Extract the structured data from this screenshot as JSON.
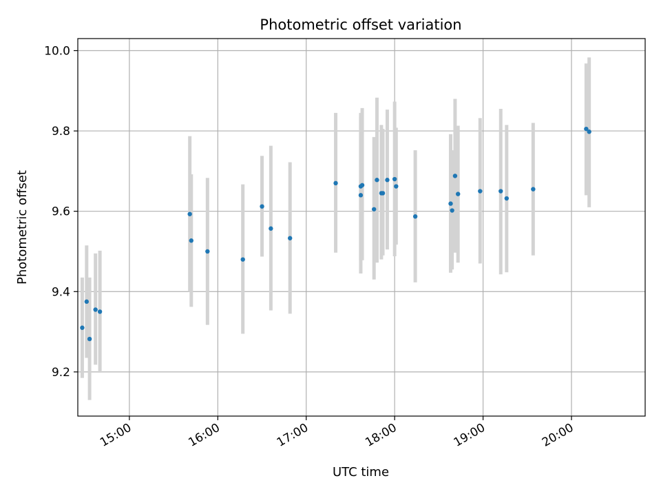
{
  "chart_data": {
    "type": "scatter",
    "title": "Photometric offset variation",
    "xlabel": "UTC time",
    "ylabel": "Photometric offset",
    "x_is_time": true,
    "xlim": [
      "14:25",
      "20:50"
    ],
    "ylim": [
      9.09,
      10.03
    ],
    "x_ticks": [
      "15:00",
      "16:00",
      "17:00",
      "18:00",
      "19:00",
      "20:00"
    ],
    "y_ticks": [
      "9.2",
      "9.4",
      "9.6",
      "9.8",
      "10.0"
    ],
    "grid": true,
    "point_color": "#1f77b4",
    "errorbar_color": "#d3d3d3",
    "series": [
      {
        "points": [
          {
            "time": "14:28",
            "y": 9.31,
            "err_low": 9.185,
            "err_high": 9.435
          },
          {
            "time": "14:31",
            "y": 9.375,
            "err_low": 9.235,
            "err_high": 9.515
          },
          {
            "time": "14:33",
            "y": 9.282,
            "err_low": 9.13,
            "err_high": 9.435
          },
          {
            "time": "14:37",
            "y": 9.355,
            "err_low": 9.218,
            "err_high": 9.495
          },
          {
            "time": "14:40",
            "y": 9.35,
            "err_low": 9.198,
            "err_high": 9.502
          },
          {
            "time": "15:41",
            "y": 9.593,
            "err_low": 9.4,
            "err_high": 9.787
          },
          {
            "time": "15:42",
            "y": 9.527,
            "err_low": 9.362,
            "err_high": 9.692
          },
          {
            "time": "15:53",
            "y": 9.5,
            "err_low": 9.317,
            "err_high": 9.683
          },
          {
            "time": "16:17",
            "y": 9.48,
            "err_low": 9.295,
            "err_high": 9.667
          },
          {
            "time": "16:30",
            "y": 9.612,
            "err_low": 9.487,
            "err_high": 9.738
          },
          {
            "time": "16:36",
            "y": 9.557,
            "err_low": 9.353,
            "err_high": 9.763
          },
          {
            "time": "16:49",
            "y": 9.533,
            "err_low": 9.345,
            "err_high": 9.722
          },
          {
            "time": "17:20",
            "y": 9.67,
            "err_low": 9.497,
            "err_high": 9.845
          },
          {
            "time": "17:37",
            "y": 9.662,
            "err_low": 9.478,
            "err_high": 9.845
          },
          {
            "time": "17:37",
            "y": 9.64,
            "err_low": 9.445,
            "err_high": 9.835
          },
          {
            "time": "17:38",
            "y": 9.665,
            "err_low": 9.478,
            "err_high": 9.857
          },
          {
            "time": "17:46",
            "y": 9.605,
            "err_low": 9.43,
            "err_high": 9.785
          },
          {
            "time": "17:48",
            "y": 9.678,
            "err_low": 9.472,
            "err_high": 9.883
          },
          {
            "time": "17:51",
            "y": 9.645,
            "err_low": 9.48,
            "err_high": 9.815
          },
          {
            "time": "17:52",
            "y": 9.645,
            "err_low": 9.49,
            "err_high": 9.805
          },
          {
            "time": "17:55",
            "y": 9.678,
            "err_low": 9.505,
            "err_high": 9.853
          },
          {
            "time": "18:00",
            "y": 9.68,
            "err_low": 9.488,
            "err_high": 9.873
          },
          {
            "time": "18:01",
            "y": 9.662,
            "err_low": 9.517,
            "err_high": 9.808
          },
          {
            "time": "18:14",
            "y": 9.587,
            "err_low": 9.423,
            "err_high": 9.752
          },
          {
            "time": "18:38",
            "y": 9.619,
            "err_low": 9.447,
            "err_high": 9.792
          },
          {
            "time": "18:39",
            "y": 9.602,
            "err_low": 9.455,
            "err_high": 9.752
          },
          {
            "time": "18:41",
            "y": 9.688,
            "err_low": 9.497,
            "err_high": 9.88
          },
          {
            "time": "18:43",
            "y": 9.643,
            "err_low": 9.472,
            "err_high": 9.813
          },
          {
            "time": "18:58",
            "y": 9.65,
            "err_low": 9.47,
            "err_high": 9.832
          },
          {
            "time": "19:12",
            "y": 9.65,
            "err_low": 9.443,
            "err_high": 9.855
          },
          {
            "time": "19:16",
            "y": 9.632,
            "err_low": 9.448,
            "err_high": 9.815
          },
          {
            "time": "19:34",
            "y": 9.655,
            "err_low": 9.49,
            "err_high": 9.82
          },
          {
            "time": "20:10",
            "y": 9.805,
            "err_low": 9.64,
            "err_high": 9.968
          },
          {
            "time": "20:12",
            "y": 9.798,
            "err_low": 9.61,
            "err_high": 9.983
          }
        ]
      }
    ]
  }
}
